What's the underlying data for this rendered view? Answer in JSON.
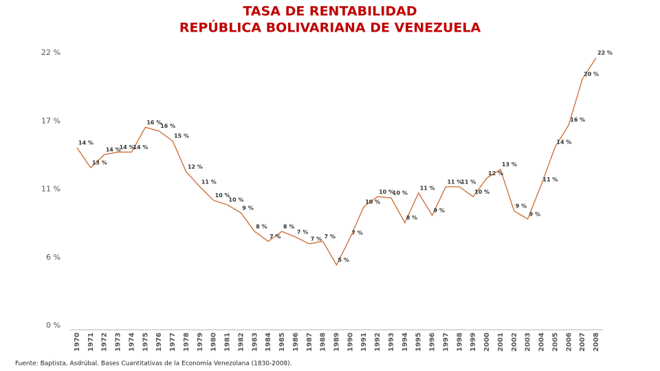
{
  "chart_data": {
    "type": "line",
    "title": [
      "TASA DE RENTABILIDAD",
      "REPÚBLICA BOLIVARIANA DE VENEZUELA"
    ],
    "categories": [
      "1970",
      "1971",
      "1972",
      "1973",
      "1974",
      "1975",
      "1976",
      "1977",
      "1978",
      "1979",
      "1980",
      "1981",
      "1982",
      "1983",
      "1984",
      "1985",
      "1986",
      "1987",
      "1988",
      "1989",
      "1990",
      "1991",
      "1992",
      "1993",
      "1994",
      "1995",
      "1996",
      "1997",
      "1998",
      "1999",
      "2000",
      "2001",
      "2002",
      "2003",
      "2004",
      "2005",
      "2006",
      "2007",
      "2008"
    ],
    "series": [
      {
        "name": "Tasa de rentabilidad",
        "color": "#c8692c",
        "values": [
          14.35,
          12.74,
          13.8,
          14.0,
          14.0,
          16.0,
          15.7,
          14.9,
          12.4,
          11.2,
          10.1,
          9.75,
          9.1,
          7.6,
          6.8,
          7.6,
          7.15,
          6.6,
          6.8,
          4.9,
          7.1,
          9.6,
          10.4,
          10.3,
          8.3,
          10.7,
          8.9,
          11.2,
          11.2,
          10.4,
          11.9,
          12.6,
          9.25,
          8.6,
          11.4,
          14.4,
          16.2,
          19.9,
          21.6
        ],
        "value_labels": [
          "14 %",
          "13 %",
          "14 %",
          "14 %",
          "14 %",
          "16 %",
          "16 %",
          "15 %",
          "12 %",
          "11 %",
          "10 %",
          "10 %",
          "9 %",
          "8 %",
          "7 %",
          "8 %",
          "7 %",
          "7 %",
          "7 %",
          "5 %",
          "7 %",
          "10 %",
          "10 %",
          "10 %",
          "8 %",
          "11 %",
          "9 %",
          "11 %",
          "11 %",
          "10 %",
          "12 %",
          "13 %",
          "9 %",
          "9 %",
          "11 %",
          "14 %",
          "16 %",
          "20 %",
          "22 %"
        ]
      }
    ],
    "ylim": [
      0,
      22
    ],
    "yticks": [
      {
        "value": 0,
        "label": "0 %"
      },
      {
        "value": 5.5,
        "label": "6 %"
      },
      {
        "value": 11,
        "label": "11 %"
      },
      {
        "value": 16.5,
        "label": "17 %"
      },
      {
        "value": 22,
        "label": "22 %"
      }
    ],
    "grid": false,
    "source": "Fuente: Baptista, Asdrúbal. Bases Cuantitativas de la Economía Venezolana (1830-2008)."
  }
}
